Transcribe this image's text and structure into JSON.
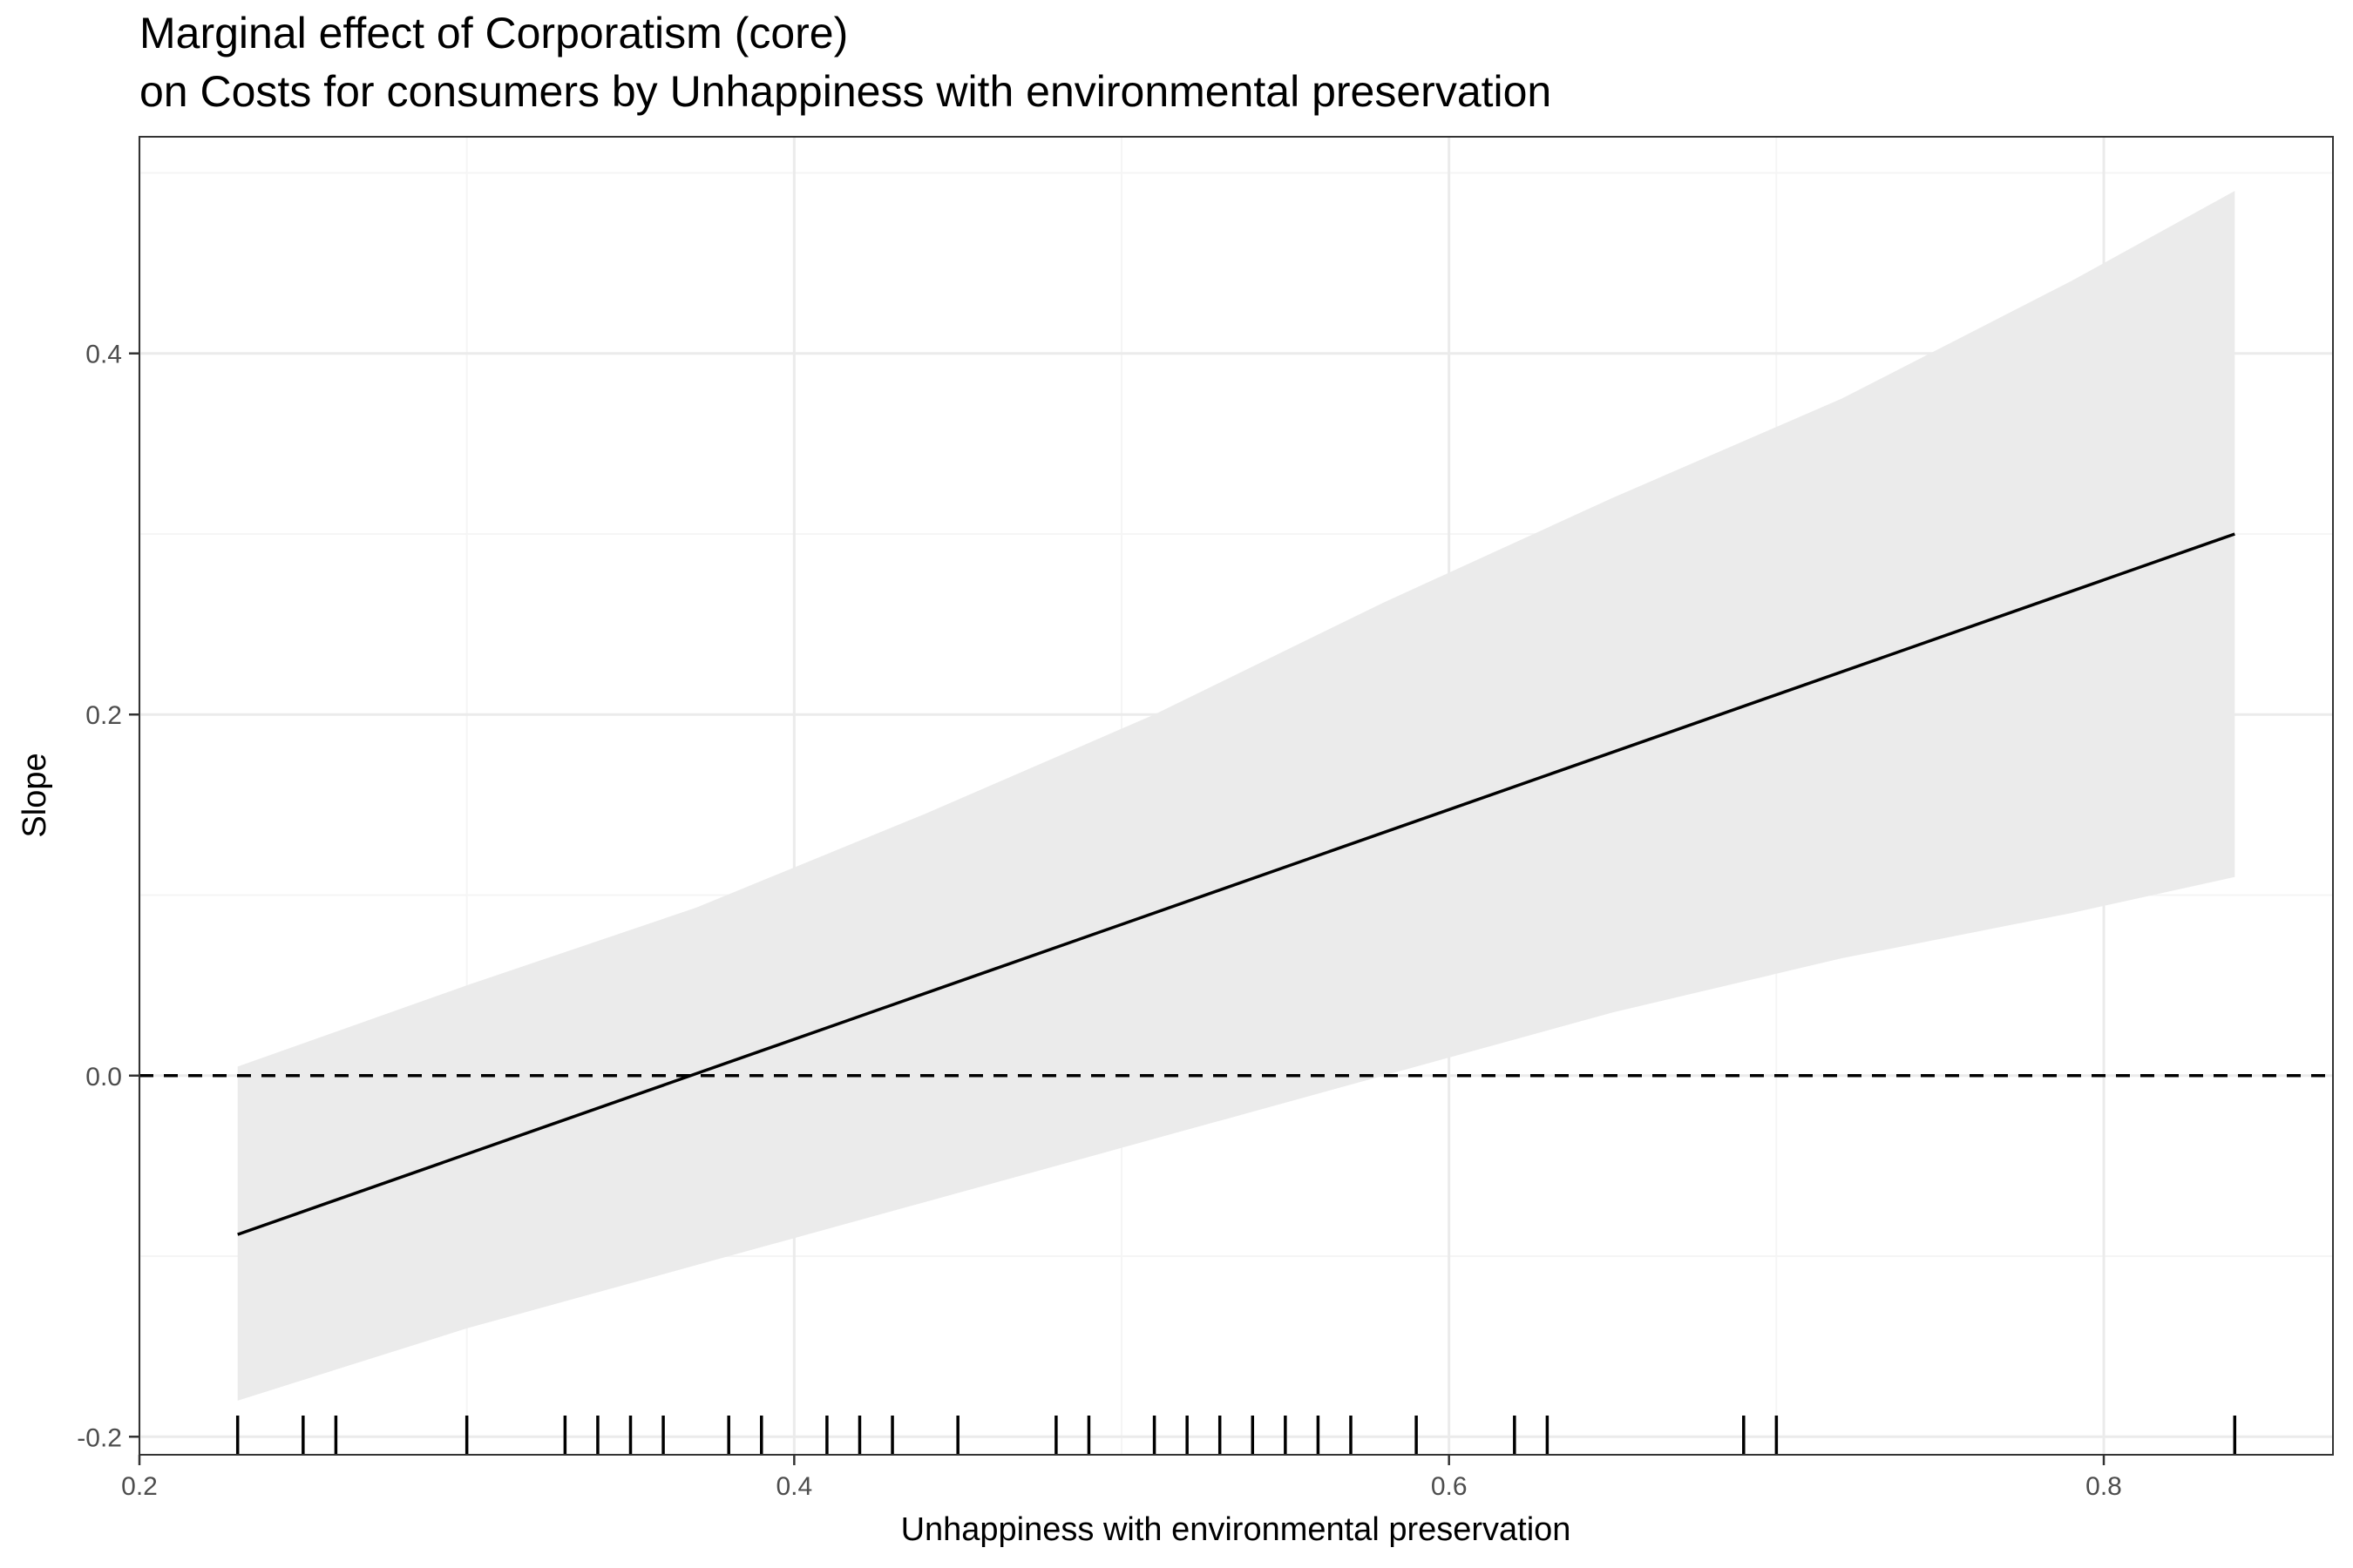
{
  "chart_data": {
    "type": "line",
    "title": "Marginal effect of Corporatism (core)",
    "subtitle": "on Costs for consumers by Unhappiness with environmental preservation",
    "xlabel": "Unhappiness with environmental preservation",
    "ylabel": "Slope",
    "xlim": [
      0.2,
      0.87
    ],
    "ylim": [
      -0.21,
      0.52
    ],
    "x_ticks": [
      "0.2",
      "0.4",
      "0.6",
      "0.8"
    ],
    "y_ticks": [
      "-0.2",
      "0.0",
      "0.2",
      "0.4"
    ],
    "grid": true,
    "reference_line": {
      "y": 0,
      "style": "dashed"
    },
    "series": [
      {
        "values": [
          {
            "x": 0.23,
            "y": -0.088
          },
          {
            "x": 0.84,
            "y": 0.3
          }
        ]
      }
    ],
    "confidence_band": {
      "x": [
        0.23,
        0.3,
        0.37,
        0.44,
        0.51,
        0.58,
        0.65,
        0.72,
        0.79,
        0.84
      ],
      "lower": [
        -0.18,
        -0.14,
        -0.105,
        -0.07,
        -0.035,
        0.0,
        0.035,
        0.065,
        0.09,
        0.11
      ],
      "upper": [
        0.005,
        0.05,
        0.093,
        0.145,
        0.2,
        0.262,
        0.32,
        0.375,
        0.44,
        0.49
      ]
    },
    "rug_x": [
      0.23,
      0.25,
      0.26,
      0.3,
      0.33,
      0.34,
      0.35,
      0.36,
      0.38,
      0.39,
      0.41,
      0.42,
      0.43,
      0.45,
      0.48,
      0.49,
      0.51,
      0.52,
      0.53,
      0.54,
      0.55,
      0.56,
      0.57,
      0.59,
      0.62,
      0.63,
      0.69,
      0.7,
      0.84
    ],
    "colors": {
      "band": "#ebebeb",
      "line": "#000000",
      "grid_major": "#ebebeb",
      "grid_minor": "#f5f5f5",
      "panel_border": "#333333"
    }
  }
}
